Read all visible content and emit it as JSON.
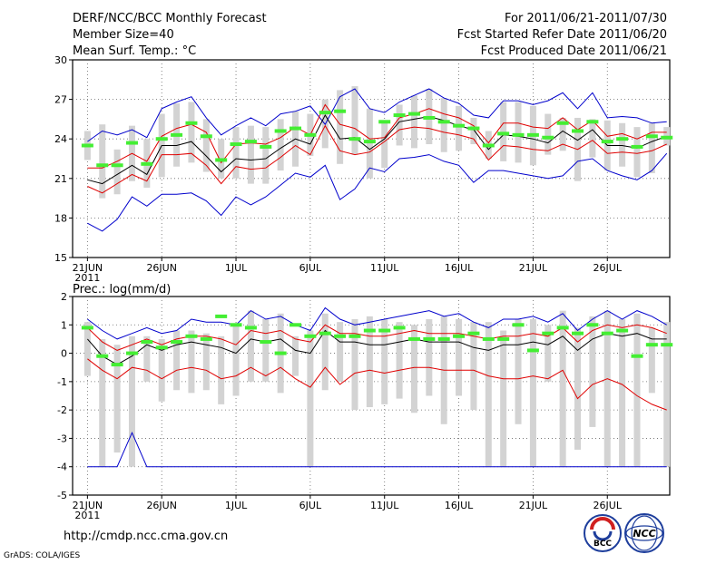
{
  "header": {
    "title": "DERF/NCC/BCC Monthly Forecast",
    "member_size": "Member Size=40",
    "variable": "Mean Surf. Temp.: °C",
    "period": "For 2011/06/21-2011/07/30",
    "refer_date": "Fcst Started Refer Date 2011/06/20",
    "produced_date": "Fcst Produced Date 2011/06/21"
  },
  "footer": {
    "url": "http://cmdp.ncc.cma.gov.cn",
    "credit": "GrADS: COLA/IGES",
    "logo_bcc_text": "BCC",
    "logo_ncc_text": "NCC"
  },
  "colors": {
    "ensemble_bar": "#d3d3d3",
    "mean_line": "#000000",
    "std_band": "#e00000",
    "envelope": "#0000cc",
    "observation_mark": "#44ee33",
    "grid": "#666666"
  },
  "chart_data": [
    {
      "type": "box",
      "title": "Mean Surf. Temp.: °C",
      "x": {
        "start": "2011-06-21",
        "days": 40,
        "tick_labels": [
          "21JUN",
          "26JUN",
          "1JUL",
          "6JUL",
          "11JUL",
          "16JUL",
          "21JUL",
          "26JUL"
        ],
        "year_label": "2011"
      },
      "ylim": [
        15,
        30
      ],
      "yticks": [
        15,
        18,
        21,
        24,
        27,
        30
      ],
      "grid": true,
      "series": [
        {
          "name": "ensemble max",
          "role": "envelope_top",
          "values": [
            23.8,
            24.6,
            24.3,
            24.7,
            24.1,
            26.3,
            26.8,
            27.2,
            25.6,
            24.3,
            25.0,
            25.6,
            25.0,
            25.9,
            26.1,
            26.5,
            25.1,
            27.2,
            27.8,
            26.3,
            26.0,
            26.8,
            27.3,
            27.8,
            27.1,
            26.7,
            25.8,
            25.6,
            26.9,
            26.9,
            26.6,
            26.9,
            27.5,
            26.3,
            27.5,
            25.6,
            25.7,
            25.6,
            25.2,
            25.3
          ]
        },
        {
          "name": "mean + std",
          "role": "upper",
          "values": [
            21.8,
            21.8,
            22.3,
            22.9,
            22.3,
            24.2,
            24.8,
            25.1,
            24.5,
            22.2,
            23.6,
            23.7,
            23.6,
            24.1,
            24.9,
            24.3,
            26.6,
            25.1,
            24.8,
            24.0,
            24.1,
            25.6,
            25.9,
            26.3,
            25.9,
            25.6,
            25.0,
            23.7,
            25.2,
            25.2,
            24.9,
            24.8,
            25.6,
            24.7,
            25.4,
            24.2,
            24.4,
            24.0,
            24.5,
            24.5
          ]
        },
        {
          "name": "ensemble mean",
          "role": "mean",
          "values": [
            20.9,
            20.6,
            21.3,
            22.0,
            21.3,
            23.5,
            23.5,
            23.8,
            22.7,
            21.5,
            22.5,
            22.4,
            22.5,
            23.3,
            24.0,
            23.6,
            25.8,
            24.0,
            24.1,
            23.2,
            24.0,
            25.3,
            25.5,
            25.7,
            25.4,
            25.0,
            24.7,
            23.2,
            24.3,
            24.2,
            24.0,
            23.7,
            24.6,
            23.9,
            24.7,
            23.5,
            23.5,
            23.3,
            23.8,
            24.2
          ]
        },
        {
          "name": "mean - std",
          "role": "lower",
          "values": [
            20.4,
            19.9,
            20.6,
            21.3,
            20.8,
            22.8,
            22.8,
            22.9,
            22.0,
            20.6,
            21.9,
            21.7,
            21.8,
            22.6,
            23.5,
            22.8,
            25.0,
            23.1,
            22.8,
            23.0,
            23.8,
            24.7,
            24.9,
            24.8,
            24.5,
            24.3,
            24.0,
            22.4,
            23.5,
            23.4,
            23.2,
            23.1,
            23.6,
            23.2,
            23.9,
            22.9,
            23.0,
            22.9,
            23.1,
            23.6
          ]
        },
        {
          "name": "ensemble min",
          "role": "envelope_bottom",
          "values": [
            17.6,
            17.0,
            17.9,
            19.6,
            18.9,
            19.8,
            19.8,
            19.9,
            19.3,
            18.2,
            19.6,
            19.0,
            19.6,
            20.5,
            21.4,
            21.1,
            22.0,
            19.4,
            20.2,
            21.8,
            21.5,
            22.5,
            22.6,
            22.8,
            22.3,
            22.0,
            20.7,
            21.6,
            21.6,
            21.4,
            21.2,
            21.0,
            21.2,
            22.3,
            22.5,
            21.6,
            21.2,
            20.9,
            21.6,
            22.9
          ]
        },
        {
          "name": "box top",
          "role": "box_top",
          "values": [
            24.6,
            25.1,
            23.2,
            25.0,
            24.0,
            25.9,
            26.7,
            26.8,
            25.5,
            24.0,
            24.9,
            25.0,
            24.9,
            25.5,
            26.1,
            25.9,
            27.0,
            27.7,
            28.0,
            26.3,
            25.3,
            26.6,
            27.3,
            27.8,
            27.1,
            26.5,
            25.6,
            24.6,
            26.8,
            26.8,
            26.5,
            25.9,
            25.6,
            25.6,
            25.5,
            25.4,
            25.2,
            24.9,
            25.2,
            24.9
          ]
        },
        {
          "name": "box bottom",
          "role": "box_bottom",
          "values": [
            22.4,
            19.5,
            19.8,
            20.8,
            20.3,
            21.1,
            21.9,
            22.2,
            21.5,
            21.0,
            21.0,
            20.6,
            20.6,
            21.6,
            21.9,
            22.7,
            23.3,
            22.1,
            22.8,
            21.0,
            21.8,
            23.5,
            23.3,
            23.6,
            23.0,
            23.1,
            23.6,
            22.5,
            22.3,
            22.2,
            22.0,
            22.8,
            23.1,
            20.8,
            22.6,
            21.6,
            21.9,
            21.1,
            21.4,
            23.5
          ]
        },
        {
          "name": "observation",
          "role": "obs",
          "values": [
            23.5,
            22.0,
            22.0,
            23.7,
            22.1,
            24.0,
            24.3,
            25.2,
            24.2,
            22.4,
            23.6,
            23.8,
            23.4,
            24.6,
            24.8,
            24.3,
            26.0,
            26.1,
            24.0,
            23.8,
            25.3,
            25.8,
            25.9,
            25.6,
            25.3,
            25.0,
            24.8,
            23.5,
            24.4,
            24.3,
            24.3,
            24.1,
            25.2,
            24.6,
            25.3,
            23.8,
            24.0,
            23.4,
            24.2,
            24.1
          ]
        }
      ]
    },
    {
      "type": "box",
      "title": "Prec.: log(mm/d)",
      "x": {
        "start": "2011-06-21",
        "days": 40,
        "tick_labels": [
          "21JUN",
          "26JUN",
          "1JUL",
          "6JUL",
          "11JUL",
          "16JUL",
          "21JUL",
          "26JUL"
        ],
        "year_label": "2011"
      },
      "ylim": [
        -5,
        2
      ],
      "yticks": [
        -5,
        -4,
        -3,
        -2,
        -1,
        0,
        1,
        2
      ],
      "grid": true,
      "series": [
        {
          "name": "ensemble max",
          "role": "envelope_top",
          "values": [
            1.2,
            0.8,
            0.5,
            0.7,
            0.9,
            0.7,
            0.8,
            1.2,
            1.1,
            1.1,
            1.0,
            1.5,
            1.2,
            1.3,
            1.0,
            0.8,
            1.6,
            1.2,
            1.0,
            1.1,
            1.2,
            1.3,
            1.4,
            1.5,
            1.3,
            1.4,
            1.1,
            0.9,
            1.2,
            1.2,
            1.3,
            1.1,
            1.4,
            0.8,
            1.2,
            1.5,
            1.2,
            1.5,
            1.3,
            1.0
          ]
        },
        {
          "name": "mean + std",
          "role": "upper",
          "values": [
            0.9,
            0.4,
            0.1,
            0.3,
            0.5,
            0.3,
            0.5,
            0.6,
            0.6,
            0.5,
            0.3,
            0.8,
            0.7,
            0.8,
            0.5,
            0.4,
            1.0,
            0.7,
            0.7,
            0.6,
            0.6,
            0.7,
            0.8,
            0.7,
            0.7,
            0.7,
            0.6,
            0.5,
            0.6,
            0.6,
            0.7,
            0.6,
            0.9,
            0.4,
            0.8,
            1.0,
            0.9,
            1.0,
            0.9,
            0.7
          ]
        },
        {
          "name": "ensemble mean",
          "role": "mean",
          "values": [
            0.5,
            -0.1,
            -0.4,
            -0.1,
            0.3,
            0.1,
            0.3,
            0.4,
            0.3,
            0.2,
            0.0,
            0.5,
            0.4,
            0.5,
            0.1,
            0.0,
            0.8,
            0.4,
            0.4,
            0.3,
            0.3,
            0.4,
            0.5,
            0.4,
            0.4,
            0.4,
            0.2,
            0.1,
            0.3,
            0.3,
            0.4,
            0.3,
            0.6,
            0.1,
            0.5,
            0.7,
            0.6,
            0.7,
            0.5,
            0.5
          ]
        },
        {
          "name": "mean - std",
          "role": "lower",
          "values": [
            -0.2,
            -0.6,
            -0.9,
            -0.5,
            -0.6,
            -0.9,
            -0.6,
            -0.5,
            -0.6,
            -0.9,
            -0.8,
            -0.5,
            -0.8,
            -0.5,
            -0.9,
            -1.2,
            -0.5,
            -1.1,
            -0.7,
            -0.6,
            -0.7,
            -0.6,
            -0.5,
            -0.5,
            -0.6,
            -0.6,
            -0.6,
            -0.8,
            -0.9,
            -0.9,
            -0.8,
            -0.9,
            -0.6,
            -1.6,
            -1.1,
            -0.9,
            -1.1,
            -1.5,
            -1.8,
            -2.0
          ]
        },
        {
          "name": "ensemble min",
          "role": "envelope_bottom",
          "values": [
            -4.0,
            -4.0,
            -4.0,
            -2.8,
            -4.0,
            -4.0,
            -4.0,
            -4.0,
            -4.0,
            -4.0,
            -4.0,
            -4.0,
            -4.0,
            -4.0,
            -4.0,
            -4.0,
            -4.0,
            -4.0,
            -4.0,
            -4.0,
            -4.0,
            -4.0,
            -4.0,
            -4.0,
            -4.0,
            -4.0,
            -4.0,
            -4.0,
            -4.0,
            -4.0,
            -4.0,
            -4.0,
            -4.0,
            -4.0,
            -4.0,
            -4.0,
            -4.0,
            -4.0,
            -4.0,
            -4.0
          ]
        },
        {
          "name": "box top",
          "role": "box_top",
          "values": [
            1.1,
            0.5,
            0.3,
            0.6,
            0.6,
            0.5,
            0.8,
            0.8,
            0.7,
            0.6,
            1.0,
            1.5,
            1.2,
            1.4,
            0.6,
            0.8,
            1.4,
            1.1,
            1.2,
            1.3,
            1.2,
            1.1,
            1.0,
            1.2,
            1.3,
            1.2,
            1.1,
            1.1,
            0.8,
            1.2,
            1.2,
            1.0,
            1.5,
            0.9,
            1.3,
            1.5,
            1.2,
            1.4,
            0.9,
            1.1
          ]
        },
        {
          "name": "box bottom",
          "role": "box_bottom",
          "values": [
            -0.8,
            -4.0,
            -3.5,
            -4.0,
            -1.0,
            -1.7,
            -1.3,
            -1.4,
            -1.3,
            -1.8,
            -1.5,
            -1.0,
            -1.0,
            -1.4,
            -0.8,
            -4.0,
            -1.3,
            -1.0,
            -2.0,
            -1.9,
            -1.8,
            -1.6,
            -2.1,
            -1.5,
            -2.5,
            -1.5,
            -2.0,
            -4.0,
            -4.0,
            -2.5,
            -4.0,
            -1.0,
            -4.0,
            -3.4,
            -2.6,
            -4.0,
            -4.0,
            -4.0,
            -1.4,
            -4.0
          ]
        },
        {
          "name": "observation",
          "role": "obs",
          "values": [
            0.9,
            -0.1,
            -0.4,
            0.0,
            0.4,
            0.2,
            0.4,
            0.6,
            0.5,
            1.3,
            1.0,
            0.9,
            0.4,
            0.0,
            1.0,
            0.6,
            0.7,
            0.6,
            0.6,
            0.8,
            0.8,
            0.9,
            0.5,
            0.5,
            0.5,
            0.6,
            0.7,
            0.5,
            0.5,
            1.0,
            0.1,
            0.7,
            0.9,
            0.7,
            1.0,
            0.7,
            0.8,
            -0.1,
            0.3,
            0.3
          ]
        }
      ]
    }
  ]
}
